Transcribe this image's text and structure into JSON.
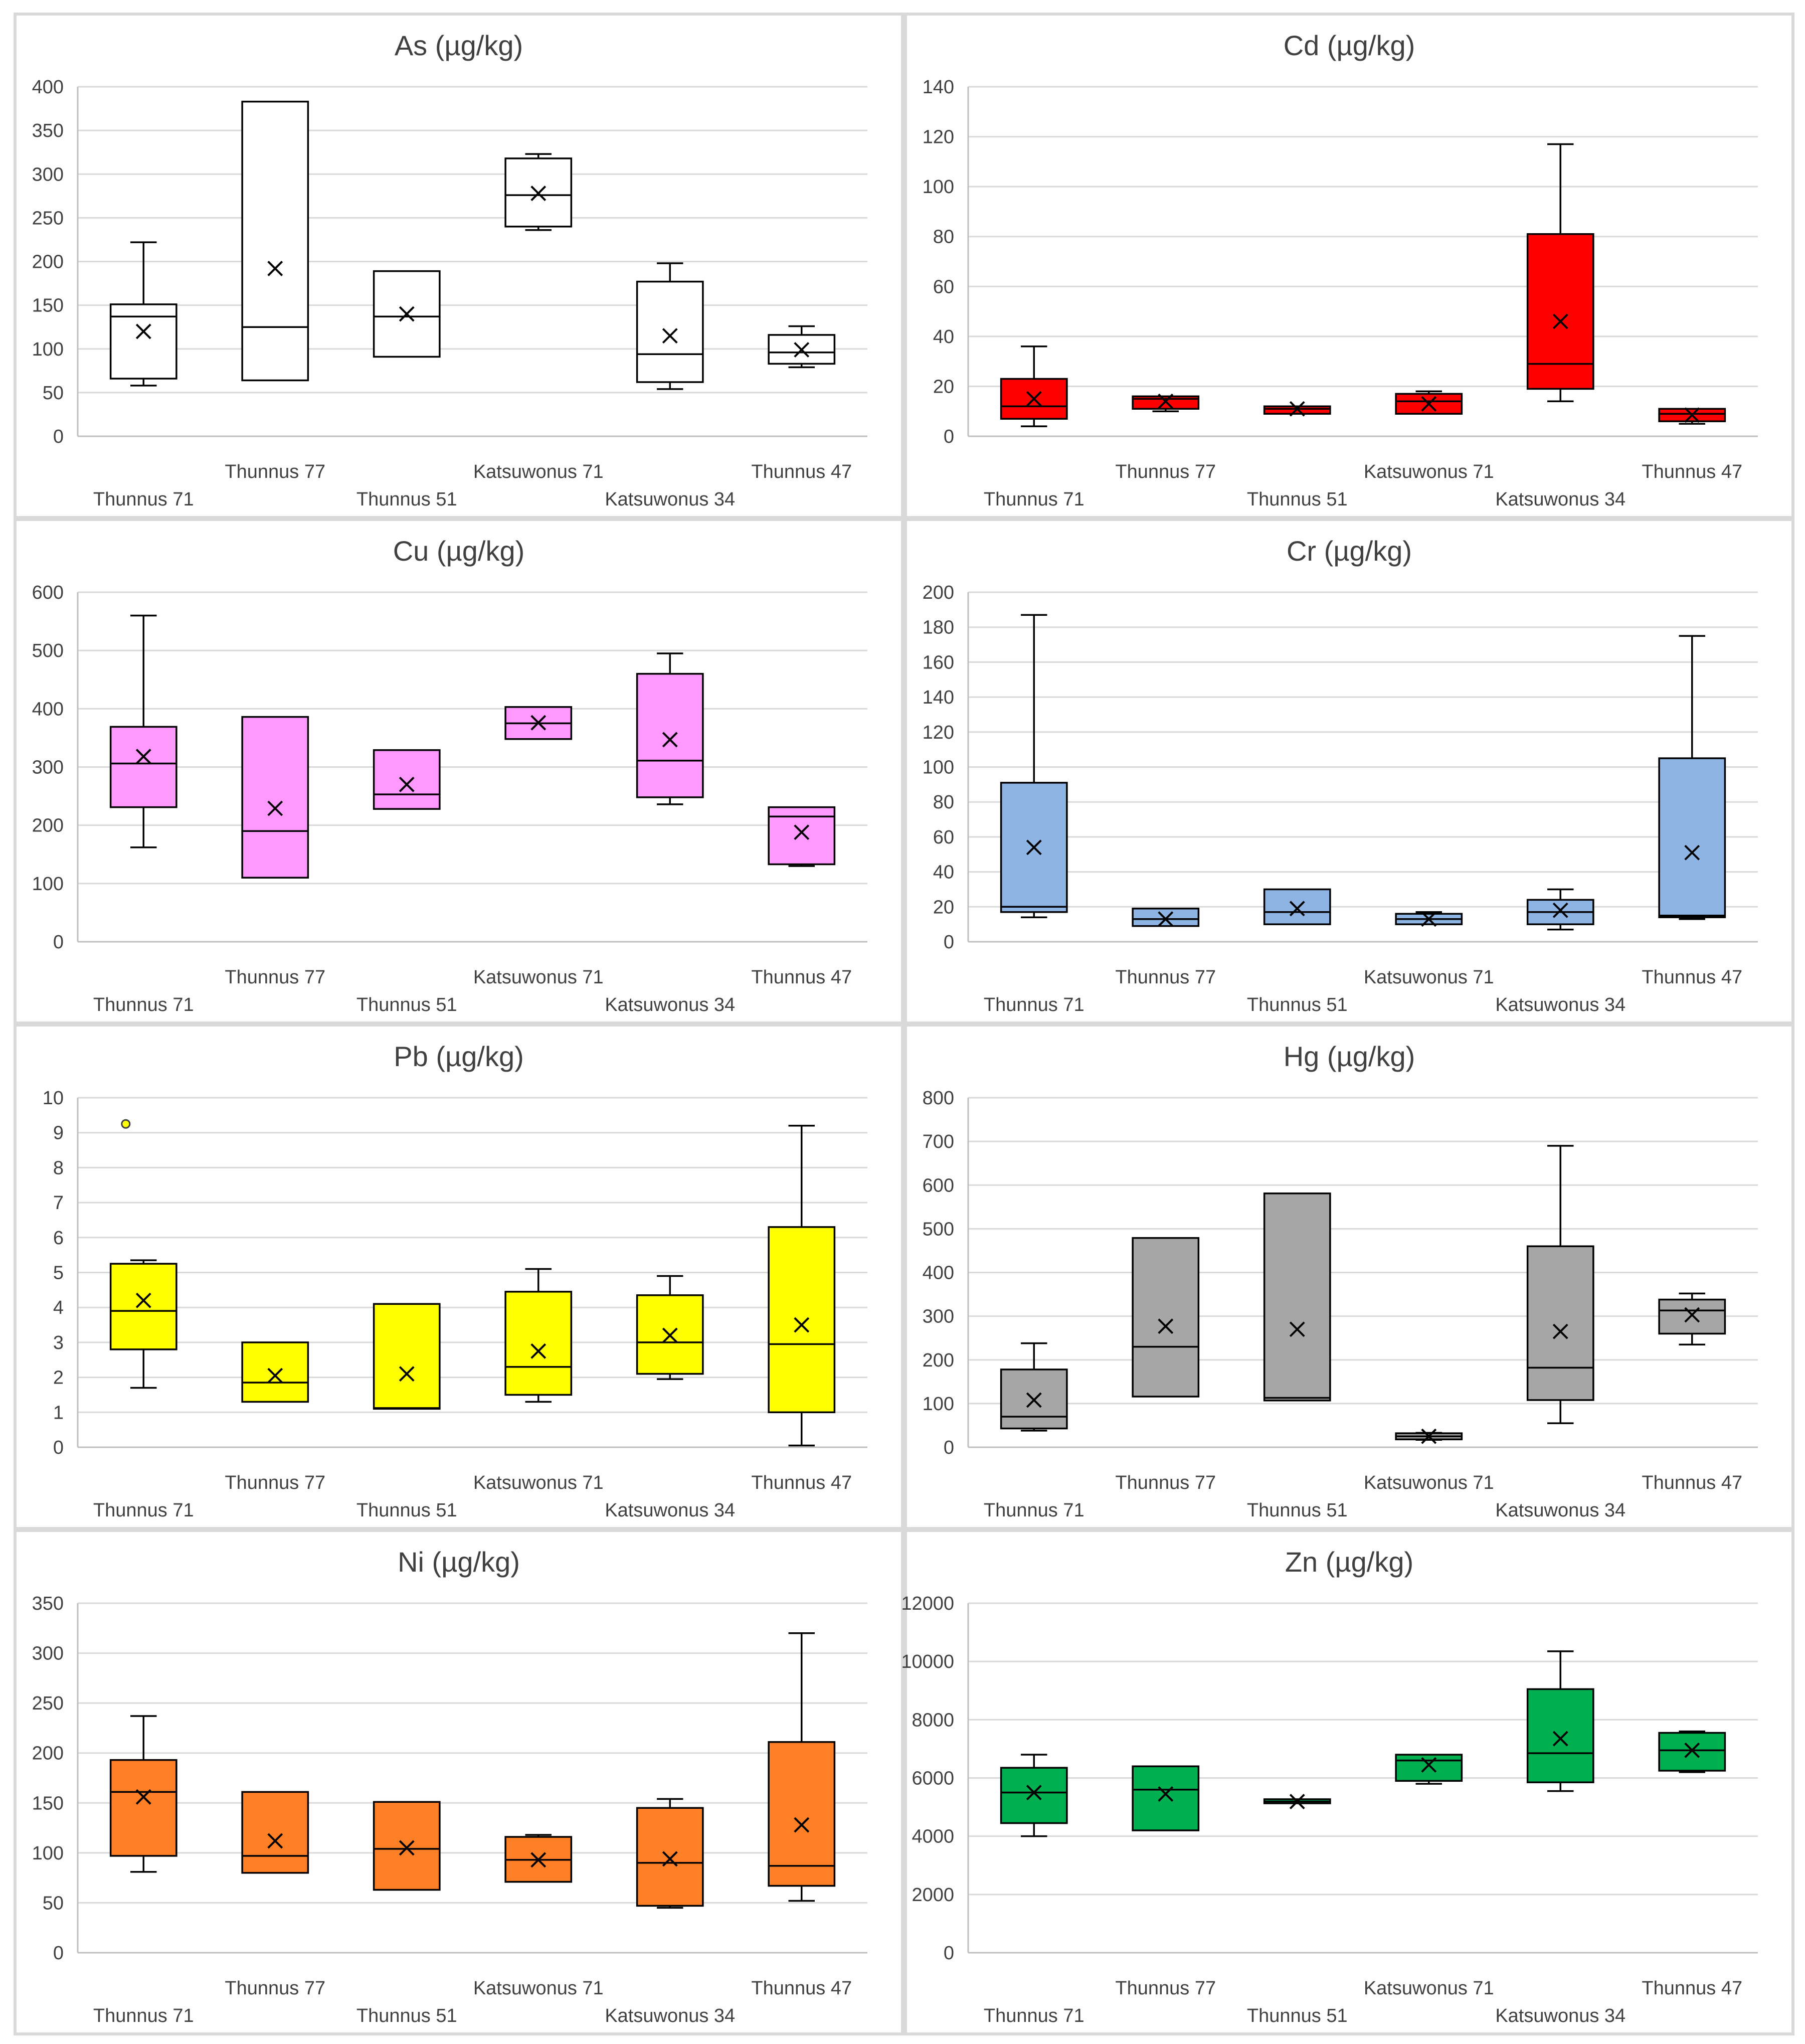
{
  "chart_data": [
    {
      "type": "box",
      "title": "As  (µg/kg)",
      "ylim": [
        0,
        400
      ],
      "yticks": [
        0,
        50,
        100,
        150,
        200,
        250,
        300,
        350,
        400
      ],
      "color": "#ffffff",
      "categories": [
        "Thunnus 71",
        "Thunnus 77",
        "Thunnus 51",
        "Katsuwonus 71",
        "Katsuwonus 34",
        "Thunnus 47"
      ],
      "boxes": [
        {
          "min": 58,
          "q1": 66,
          "median": 137,
          "q3": 151,
          "max": 222,
          "mean": 120
        },
        {
          "min": 64,
          "q1": 64,
          "median": 125,
          "q3": 383,
          "max": 383,
          "mean": 192
        },
        {
          "min": 91,
          "q1": 91,
          "median": 137,
          "q3": 189,
          "max": 189,
          "mean": 140
        },
        {
          "min": 236,
          "q1": 240,
          "median": 276,
          "q3": 318,
          "max": 323,
          "mean": 278
        },
        {
          "min": 54,
          "q1": 62,
          "median": 94,
          "q3": 177,
          "max": 198,
          "mean": 115
        },
        {
          "min": 79,
          "q1": 83,
          "median": 96,
          "q3": 116,
          "max": 126,
          "mean": 99
        }
      ],
      "outliers": []
    },
    {
      "type": "box",
      "title": "Cd (µg/kg)",
      "ylim": [
        0,
        140
      ],
      "yticks": [
        0,
        20,
        40,
        60,
        80,
        100,
        120,
        140
      ],
      "color": "#ff0000",
      "categories": [
        "Thunnus 71",
        "Thunnus 77",
        "Thunnus 51",
        "Katsuwonus 71",
        "Katsuwonus 34",
        "Thunnus 47"
      ],
      "boxes": [
        {
          "min": 4,
          "q1": 7,
          "median": 12,
          "q3": 23,
          "max": 36,
          "mean": 15
        },
        {
          "min": 10,
          "q1": 11,
          "median": 15,
          "q3": 16,
          "max": 16,
          "mean": 14
        },
        {
          "min": 9,
          "q1": 9,
          "median": 11,
          "q3": 12,
          "max": 12,
          "mean": 11
        },
        {
          "min": 9,
          "q1": 9,
          "median": 14,
          "q3": 17,
          "max": 18,
          "mean": 13
        },
        {
          "min": 14,
          "q1": 19,
          "median": 29,
          "q3": 81,
          "max": 117,
          "mean": 46
        },
        {
          "min": 5,
          "q1": 6,
          "median": 9,
          "q3": 11,
          "max": 11,
          "mean": 8.5
        }
      ],
      "outliers": []
    },
    {
      "type": "box",
      "title": "Cu (µg/kg)",
      "ylim": [
        0,
        600
      ],
      "yticks": [
        0,
        100,
        200,
        300,
        400,
        500,
        600
      ],
      "color": "#ff99ff",
      "categories": [
        "Thunnus 71",
        "Thunnus 77",
        "Thunnus 51",
        "Katsuwonus 71",
        "Katsuwonus 34",
        "Thunnus 47"
      ],
      "boxes": [
        {
          "min": 162,
          "q1": 231,
          "median": 306,
          "q3": 369,
          "max": 560,
          "mean": 318
        },
        {
          "min": 110,
          "q1": 110,
          "median": 190,
          "q3": 386,
          "max": 386,
          "mean": 229
        },
        {
          "min": 228,
          "q1": 228,
          "median": 253,
          "q3": 329,
          "max": 329,
          "mean": 270
        },
        {
          "min": 348,
          "q1": 348,
          "median": 375,
          "q3": 403,
          "max": 403,
          "mean": 376
        },
        {
          "min": 236,
          "q1": 248,
          "median": 311,
          "q3": 460,
          "max": 495,
          "mean": 347
        },
        {
          "min": 130,
          "q1": 133,
          "median": 215,
          "q3": 231,
          "max": 231,
          "mean": 188
        }
      ],
      "outliers": []
    },
    {
      "type": "box",
      "title": "Cr (µg/kg)",
      "ylim": [
        0,
        200
      ],
      "yticks": [
        0,
        20,
        40,
        60,
        80,
        100,
        120,
        140,
        160,
        180,
        200
      ],
      "color": "#8eb4e3",
      "categories": [
        "Thunnus 71",
        "Thunnus 77",
        "Thunnus 51",
        "Katsuwonus 71",
        "Katsuwonus 34",
        "Thunnus 47"
      ],
      "boxes": [
        {
          "min": 14,
          "q1": 17,
          "median": 20,
          "q3": 91,
          "max": 187,
          "mean": 54
        },
        {
          "min": 9,
          "q1": 9,
          "median": 13,
          "q3": 19,
          "max": 19,
          "mean": 13
        },
        {
          "min": 10,
          "q1": 10,
          "median": 17,
          "q3": 30,
          "max": 30,
          "mean": 19
        },
        {
          "min": 10,
          "q1": 10,
          "median": 13,
          "q3": 16,
          "max": 17,
          "mean": 13
        },
        {
          "min": 7,
          "q1": 10,
          "median": 17,
          "q3": 24,
          "max": 30,
          "mean": 18
        },
        {
          "min": 13,
          "q1": 14,
          "median": 15,
          "q3": 105,
          "max": 175,
          "mean": 51
        }
      ],
      "outliers": []
    },
    {
      "type": "box",
      "title": "Pb (µg/kg)",
      "ylim": [
        0,
        10
      ],
      "yticks": [
        0,
        1,
        2,
        3,
        4,
        5,
        6,
        7,
        8,
        9,
        10
      ],
      "color": "#ffff00",
      "categories": [
        "Thunnus 71",
        "Thunnus 77",
        "Thunnus 51",
        "Katsuwonus 71",
        "Katsuwonus 34",
        "Thunnus 47"
      ],
      "boxes": [
        {
          "min": 1.7,
          "q1": 2.8,
          "median": 3.9,
          "q3": 5.25,
          "max": 5.35,
          "mean": 4.2
        },
        {
          "min": 1.3,
          "q1": 1.3,
          "median": 1.85,
          "q3": 3.0,
          "max": 3.0,
          "mean": 2.05
        },
        {
          "min": 1.1,
          "q1": 1.1,
          "median": 1.12,
          "q3": 4.1,
          "max": 4.1,
          "mean": 2.1
        },
        {
          "min": 1.3,
          "q1": 1.5,
          "median": 2.3,
          "q3": 4.45,
          "max": 5.1,
          "mean": 2.75
        },
        {
          "min": 1.95,
          "q1": 2.1,
          "median": 3.0,
          "q3": 4.35,
          "max": 4.9,
          "mean": 3.2
        },
        {
          "min": 0.05,
          "q1": 1.0,
          "median": 2.95,
          "q3": 6.3,
          "max": 9.2,
          "mean": 3.5
        }
      ],
      "outliers": [
        {
          "category": 0,
          "value": 9.25
        }
      ]
    },
    {
      "type": "box",
      "title": "Hg (µg/kg)",
      "ylim": [
        0,
        800
      ],
      "yticks": [
        0,
        100,
        200,
        300,
        400,
        500,
        600,
        700,
        800
      ],
      "color": "#a6a6a6",
      "categories": [
        "Thunnus 71",
        "Thunnus 77",
        "Thunnus 51",
        "Katsuwonus 71",
        "Katsuwonus 34",
        "Thunnus 47"
      ],
      "boxes": [
        {
          "min": 38,
          "q1": 43,
          "median": 70,
          "q3": 178,
          "max": 238,
          "mean": 108
        },
        {
          "min": 116,
          "q1": 116,
          "median": 230,
          "q3": 479,
          "max": 479,
          "mean": 277
        },
        {
          "min": 107,
          "q1": 107,
          "median": 113,
          "q3": 581,
          "max": 581,
          "mean": 270
        },
        {
          "min": 17,
          "q1": 18,
          "median": 25,
          "q3": 32,
          "max": 33,
          "mean": 25
        },
        {
          "min": 55,
          "q1": 108,
          "median": 182,
          "q3": 460,
          "max": 690,
          "mean": 265
        },
        {
          "min": 235,
          "q1": 260,
          "median": 313,
          "q3": 338,
          "max": 352,
          "mean": 303
        }
      ],
      "outliers": []
    },
    {
      "type": "box",
      "title": "Ni (µg/kg)",
      "ylim": [
        0,
        350
      ],
      "yticks": [
        0,
        50,
        100,
        150,
        200,
        250,
        300,
        350
      ],
      "color": "#ff7f27",
      "categories": [
        "Thunnus 71",
        "Thunnus 77",
        "Thunnus 51",
        "Katsuwonus 71",
        "Katsuwonus 34",
        "Thunnus 47"
      ],
      "boxes": [
        {
          "min": 81,
          "q1": 97,
          "median": 161,
          "q3": 193,
          "max": 237,
          "mean": 156
        },
        {
          "min": 80,
          "q1": 80,
          "median": 97,
          "q3": 161,
          "max": 161,
          "mean": 112
        },
        {
          "min": 63,
          "q1": 63,
          "median": 104,
          "q3": 151,
          "max": 151,
          "mean": 105
        },
        {
          "min": 71,
          "q1": 71,
          "median": 93,
          "q3": 116,
          "max": 118,
          "mean": 93
        },
        {
          "min": 45,
          "q1": 47,
          "median": 90,
          "q3": 145,
          "max": 154,
          "mean": 94
        },
        {
          "min": 52,
          "q1": 67,
          "median": 87,
          "q3": 211,
          "max": 320,
          "mean": 128
        }
      ],
      "outliers": []
    },
    {
      "type": "box",
      "title": "Zn (µg/kg)",
      "ylim": [
        0,
        12000
      ],
      "yticks": [
        0,
        2000,
        4000,
        6000,
        8000,
        10000,
        12000
      ],
      "color": "#00b050",
      "categories": [
        "Thunnus 71",
        "Thunnus 77",
        "Thunnus 51",
        "Katsuwonus 71",
        "Katsuwonus 34",
        "Thunnus 47"
      ],
      "boxes": [
        {
          "min": 4000,
          "q1": 4450,
          "median": 5500,
          "q3": 6350,
          "max": 6800,
          "mean": 5500
        },
        {
          "min": 4200,
          "q1": 4200,
          "median": 5600,
          "q3": 6400,
          "max": 6400,
          "mean": 5450
        },
        {
          "min": 5130,
          "q1": 5130,
          "median": 5190,
          "q3": 5270,
          "max": 5270,
          "mean": 5190
        },
        {
          "min": 5800,
          "q1": 5900,
          "median": 6600,
          "q3": 6800,
          "max": 6800,
          "mean": 6450
        },
        {
          "min": 5550,
          "q1": 5850,
          "median": 6850,
          "q3": 9050,
          "max": 10350,
          "mean": 7350
        },
        {
          "min": 6200,
          "q1": 6250,
          "median": 6950,
          "q3": 7550,
          "max": 7600,
          "mean": 6950
        }
      ],
      "outliers": []
    }
  ]
}
